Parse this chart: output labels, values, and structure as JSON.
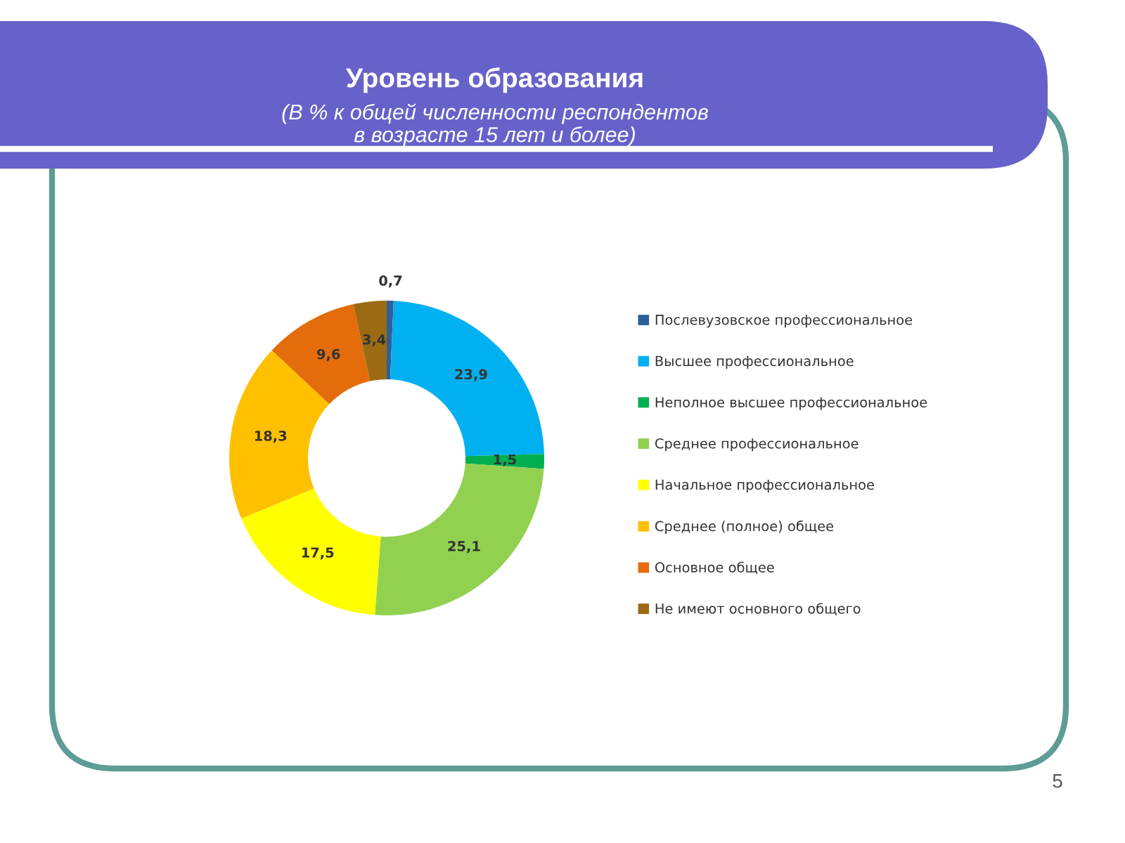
{
  "chart_data": {
    "type": "donut",
    "title": "Уровень образования",
    "subtitle": "(В % к общей численности респондентов\nв возрасте 15 лет и более)",
    "categories": [
      "Послевузовское профессиональное",
      "Высшее профессиональное",
      "Неполное высшее профессиональное",
      "Среднее профессиональное",
      "Начальное профессиональное",
      "Среднее (полное) общее",
      "Основное общее",
      "Не имеют основного общего"
    ],
    "values": [
      0.7,
      23.9,
      1.5,
      25.1,
      17.5,
      18.3,
      9.6,
      3.4
    ],
    "colors": [
      "#2f5f98",
      "#00b0f0",
      "#00b050",
      "#92d050",
      "#ffff00",
      "#ffc000",
      "#e46c0a",
      "#9c6a12"
    ],
    "value_labels": [
      "0,7",
      "23,9",
      "1,5",
      "25,1",
      "17,5",
      "18,3",
      "9,6",
      "3,4"
    ],
    "legend": "right",
    "annotations": [
      "5"
    ]
  }
}
